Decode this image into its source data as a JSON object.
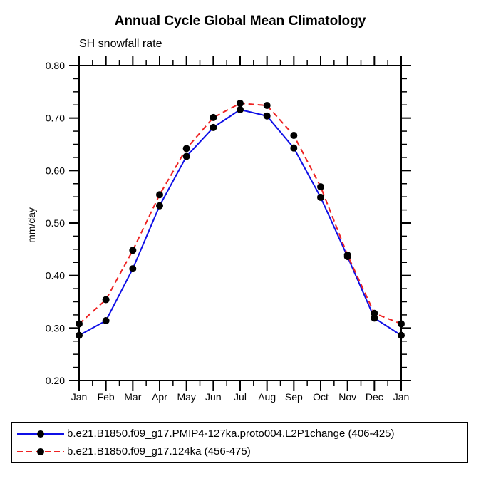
{
  "chart_data": {
    "type": "line",
    "title": "Annual Cycle Global Mean Climatology",
    "subtitle": "SH snowfall rate",
    "ylabel": "mm/day",
    "xlabel": "",
    "categories": [
      "Jan",
      "Feb",
      "Mar",
      "Apr",
      "May",
      "Jun",
      "Jul",
      "Aug",
      "Sep",
      "Oct",
      "Nov",
      "Dec",
      "Jan"
    ],
    "ylim": [
      0.2,
      0.8
    ],
    "y_major_step": 0.1,
    "y_minor_step": 0.025,
    "y_tick_decimals": 2,
    "grid": false,
    "frame_color": "#000000",
    "marker_color": "#000000",
    "legend_position": "bottom-left-boxed",
    "series": [
      {
        "name": "b.e21.B1850.f09_g17.PMIP4-127ka.proto004.L2P1change (406-425)",
        "color": "#0f0fe6",
        "line_style": "solid",
        "values": [
          0.286,
          0.314,
          0.413,
          0.533,
          0.627,
          0.682,
          0.716,
          0.704,
          0.643,
          0.549,
          0.436,
          0.319,
          0.286
        ]
      },
      {
        "name": "b.e21.B1850.f09_g17.124ka (456-475)",
        "color": "#ee2222",
        "line_style": "dashed",
        "values": [
          0.308,
          0.354,
          0.448,
          0.554,
          0.642,
          0.701,
          0.728,
          0.724,
          0.667,
          0.569,
          0.439,
          0.328,
          0.308
        ]
      }
    ]
  }
}
